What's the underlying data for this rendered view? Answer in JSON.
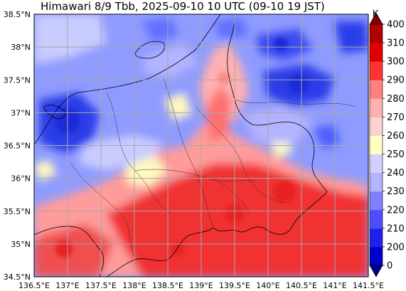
{
  "title": "Himawari 8/9 Tbb, 2025-09-10 10 UTC (09-10 19 JST)",
  "map": {
    "lon_range": [
      136.5,
      141.5
    ],
    "lat_range": [
      34.5,
      38.5
    ],
    "lon_ticks": [
      "136.5°E",
      "137°E",
      "137.5°E",
      "138°E",
      "138.5°E",
      "139°E",
      "139.5°E",
      "140°E",
      "140.5°E",
      "141°E",
      "141.5°E"
    ],
    "lat_ticks": [
      "34.5°N",
      "35°N",
      "35.5°N",
      "36°N",
      "36.5°N",
      "37°N",
      "37.5°N",
      "38°N",
      "38.5°N"
    ],
    "grid": true
  },
  "colorbar": {
    "unit": "K",
    "tick_labels": [
      "0",
      "200",
      "210",
      "220",
      "230",
      "240",
      "250",
      "260",
      "270",
      "280",
      "290",
      "300",
      "310",
      "400"
    ],
    "colors": [
      "#00008b",
      "#0000cd",
      "#2020ee",
      "#4d4dff",
      "#8080ff",
      "#b3b3ff",
      "#d0d0ff",
      "#ffffbf",
      "#ffd0d0",
      "#ffb0b0",
      "#ff8080",
      "#ff3333",
      "#e00000",
      "#b00000",
      "#800000"
    ]
  },
  "legend_colors": {
    "cold": "#2b3ce8",
    "cool": "#8f9bff",
    "pale": "#c9ccff",
    "neutral": "#fff8c0",
    "warm": "#ff9b9b",
    "hot": "#f03030"
  }
}
